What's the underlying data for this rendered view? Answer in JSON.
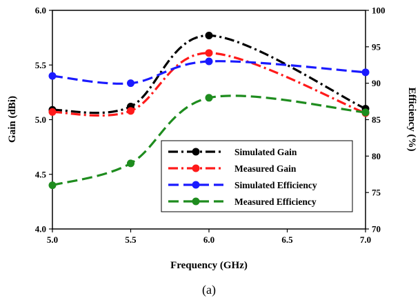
{
  "chart_data": {
    "type": "line",
    "x_ticks": [
      "5.0",
      "5.5",
      "6.0",
      "6.5",
      "7.0"
    ],
    "y_left_ticks": [
      "4.0",
      "4.5",
      "5.0",
      "5.5",
      "6.0"
    ],
    "y_right_ticks": [
      "70",
      "75",
      "80",
      "85",
      "90",
      "95",
      "100"
    ],
    "xlabel": "Frequency (GHz)",
    "ylabel_left": "Gain (dBi)",
    "ylabel_right": "Efficiency (%)",
    "xlim": [
      5.0,
      7.0
    ],
    "ylim_left": [
      4.0,
      6.0
    ],
    "ylim_right": [
      70,
      100
    ],
    "caption": "(a)",
    "legend_position": "lower-right",
    "grid": false,
    "series": [
      {
        "name": "Simulated Gain",
        "axis": "left",
        "color": "#000000",
        "dash": "dashdot",
        "x": [
          5.0,
          5.5,
          6.0,
          7.0
        ],
        "y": [
          5.09,
          5.12,
          5.77,
          5.1
        ]
      },
      {
        "name": "Measured Gain",
        "axis": "left",
        "color": "#ff1a1a",
        "dash": "dashdot",
        "x": [
          5.0,
          5.5,
          6.0,
          7.0
        ],
        "y": [
          5.07,
          5.08,
          5.61,
          5.06
        ]
      },
      {
        "name": "Simulated Efficiency",
        "axis": "right",
        "color": "#1a1aff",
        "dash": "dash",
        "x": [
          5.0,
          5.5,
          6.0,
          7.0
        ],
        "y": [
          91,
          90,
          93,
          91.5
        ]
      },
      {
        "name": "Measured Efficiency",
        "axis": "right",
        "color": "#1e8c1e",
        "dash": "dash",
        "x": [
          5.0,
          5.5,
          6.0,
          7.0
        ],
        "y": [
          76,
          79,
          88,
          86
        ]
      }
    ]
  }
}
